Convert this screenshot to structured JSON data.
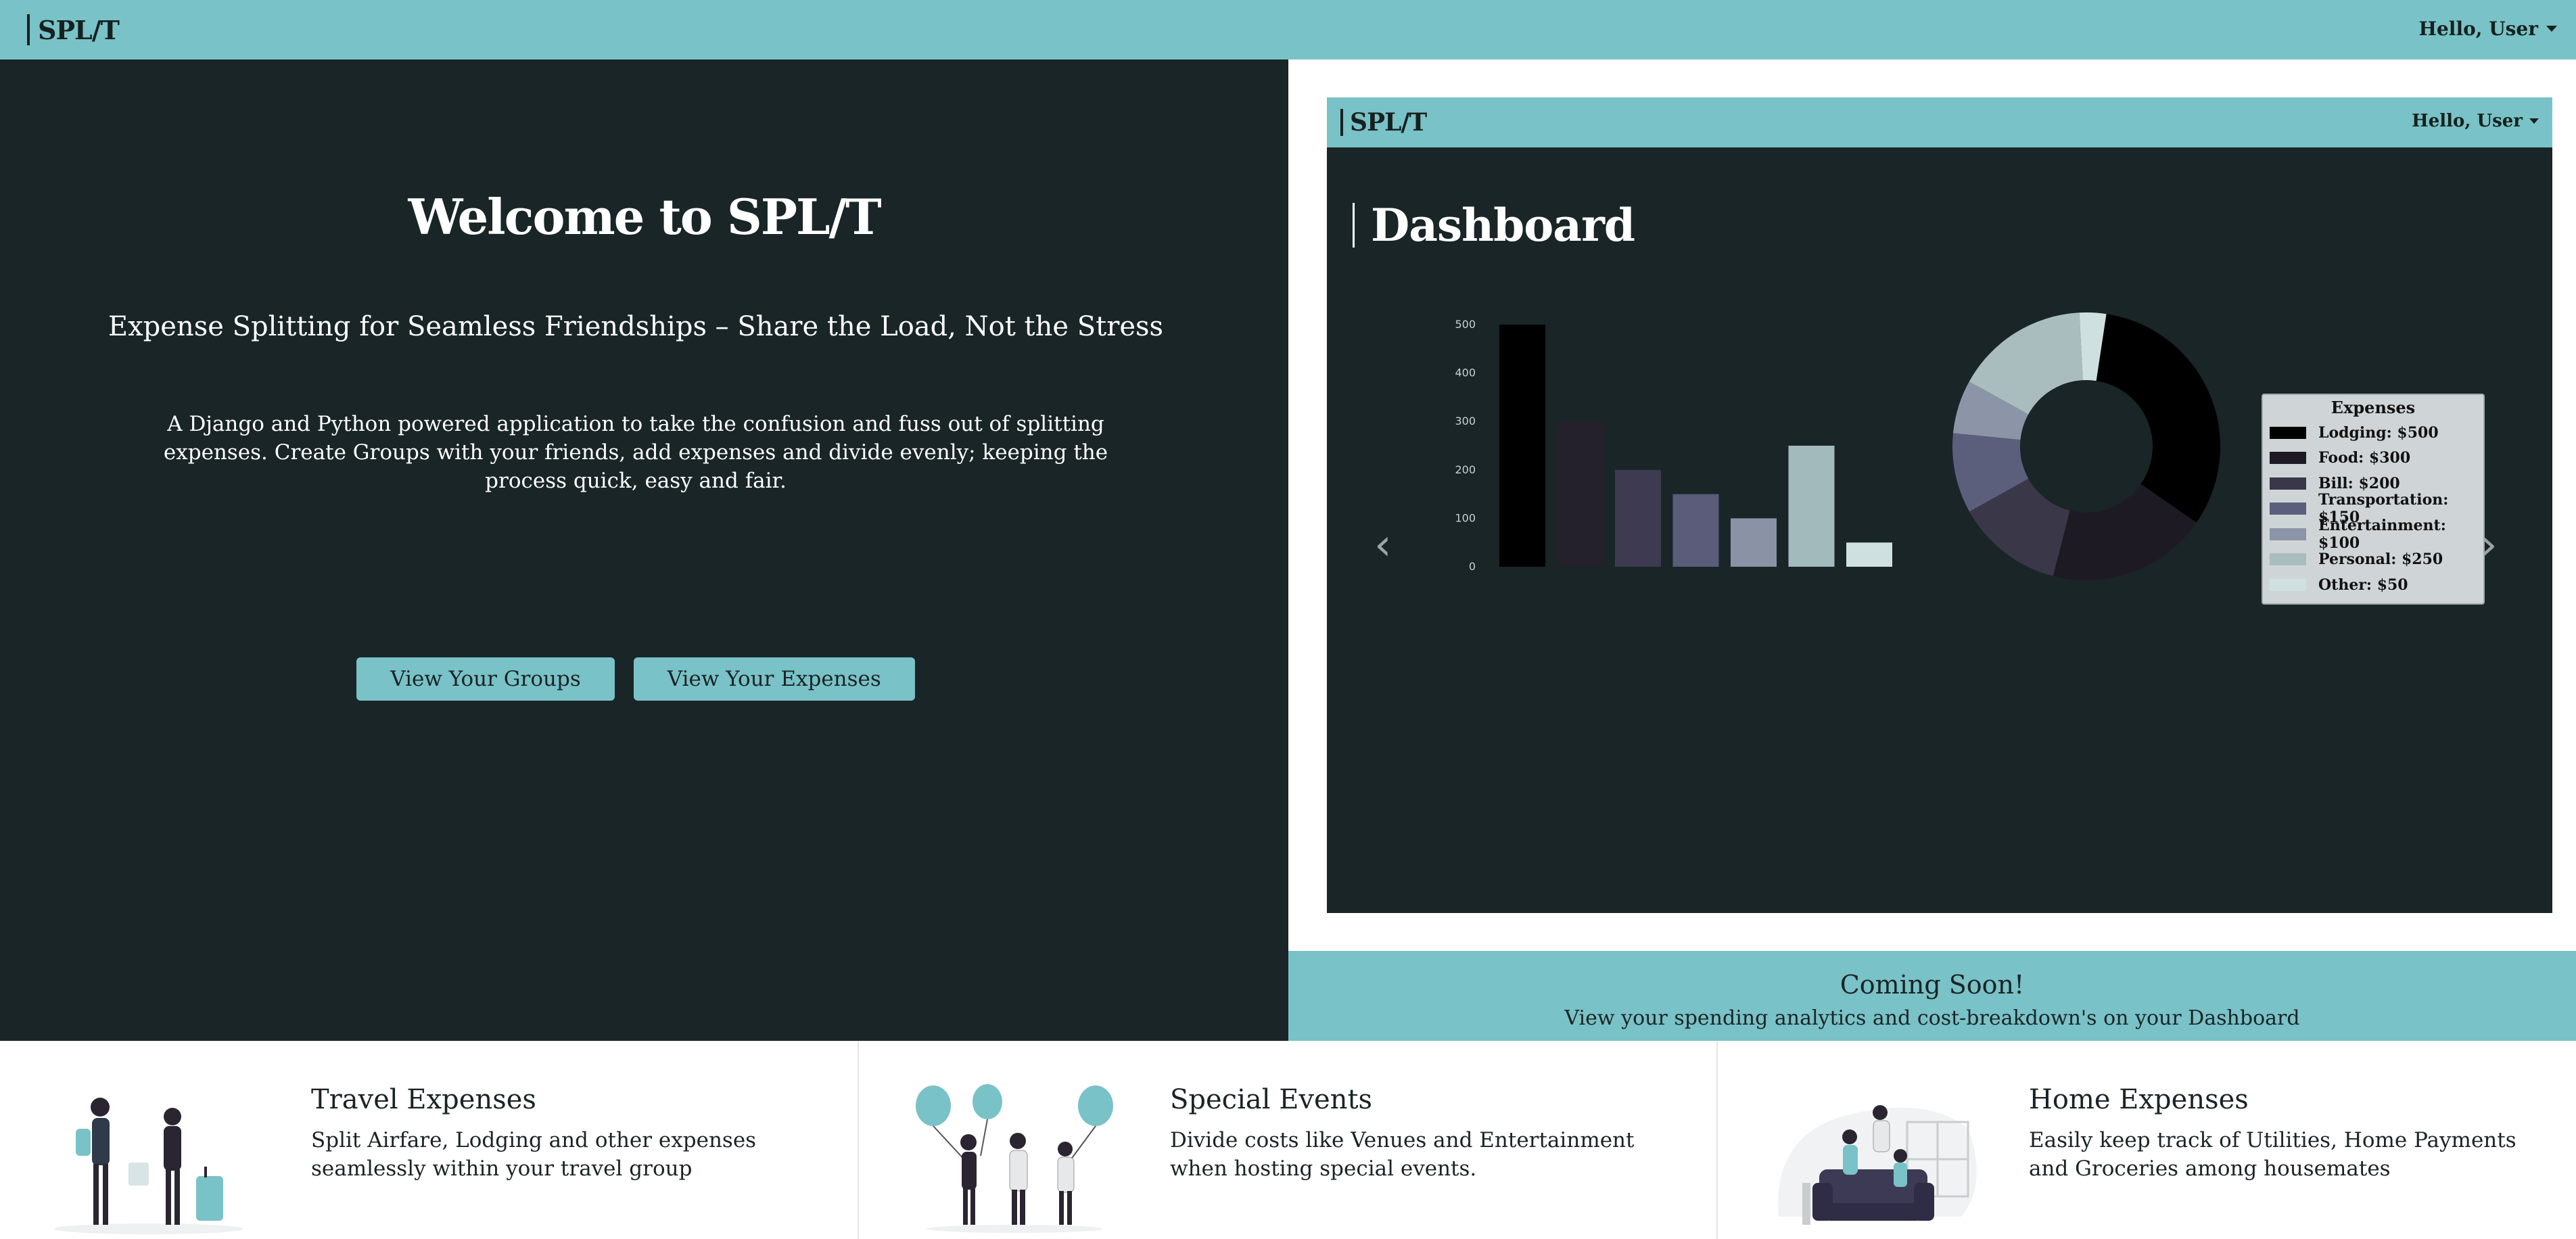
{
  "navbar": {
    "brand": "SPL/T",
    "user_greeting": "Hello, User"
  },
  "hero": {
    "title": "Welcome to SPL/T",
    "subtitle": "Expense Splitting for Seamless Friendships – Share the Load, Not the Stress",
    "description": "A Django and Python powered application to take the confusion and fuss out of splitting expenses. Create Groups with your friends, add expenses and divide evenly; keeping the process quick, easy and fair.",
    "buttons": {
      "groups_label": "View Your Groups",
      "expenses_label": "View Your Expenses"
    }
  },
  "preview": {
    "navbar": {
      "brand": "SPL/T",
      "user_greeting": "Hello, User"
    },
    "dashboard_title": "Dashboard",
    "prev_icon": "chevron-left-icon",
    "next_icon": "chevron-right-icon",
    "coming_soon": {
      "title": "Coming Soon!",
      "subtitle": "View your spending analytics and cost-breakdown's on your Dashboard"
    }
  },
  "chart_data": [
    {
      "type": "bar",
      "categories": [
        "Lodging",
        "Food",
        "Bill",
        "Transportation",
        "Entertainment",
        "Personal",
        "Other"
      ],
      "values": [
        500,
        300,
        200,
        150,
        100,
        250,
        50
      ],
      "ylim": [
        0,
        500
      ],
      "yticks": [
        "0",
        "100",
        "200",
        "300",
        "400",
        "500"
      ],
      "colors": [
        "#000000",
        "#24202c",
        "#3d3a52",
        "#5a5c7a",
        "#8a93a6",
        "#a3babd",
        "#cfe0e0"
      ],
      "grid": false
    },
    {
      "type": "pie",
      "donut": true,
      "title": "Expenses",
      "labels": [
        "Lodging",
        "Food",
        "Bill",
        "Transportation",
        "Entertainment",
        "Personal",
        "Other"
      ],
      "values": [
        500,
        300,
        200,
        150,
        100,
        250,
        50
      ],
      "colors": [
        "#000000",
        "#1e1a24",
        "#3a3748",
        "#5c5f7c",
        "#8c95a8",
        "#a9bdbf",
        "#cfe0e0"
      ],
      "legend_placement": "right",
      "legend_entries": [
        "Lodging: $500",
        "Food: $300",
        "Bill: $200",
        "Transportation: $150",
        "Entertainment: $100",
        "Personal: $250",
        "Other: $50"
      ]
    }
  ],
  "features": [
    {
      "title": "Travel Expenses",
      "description": "Split Airfare, Lodging and other expenses seamlessly within your travel group",
      "illustration": "travelers-illustration"
    },
    {
      "title": "Special Events",
      "description": "Divide costs like Venues and Entertainment when hosting special events.",
      "illustration": "party-balloons-illustration"
    },
    {
      "title": "Home Expenses",
      "description": "Easily keep track of Utilities, Home Payments and Groceries among housemates",
      "illustration": "housemates-couch-illustration"
    }
  ],
  "colors": {
    "accent": "#79c2c7",
    "dark_bg": "#192527",
    "text_dark": "#1a2426"
  }
}
